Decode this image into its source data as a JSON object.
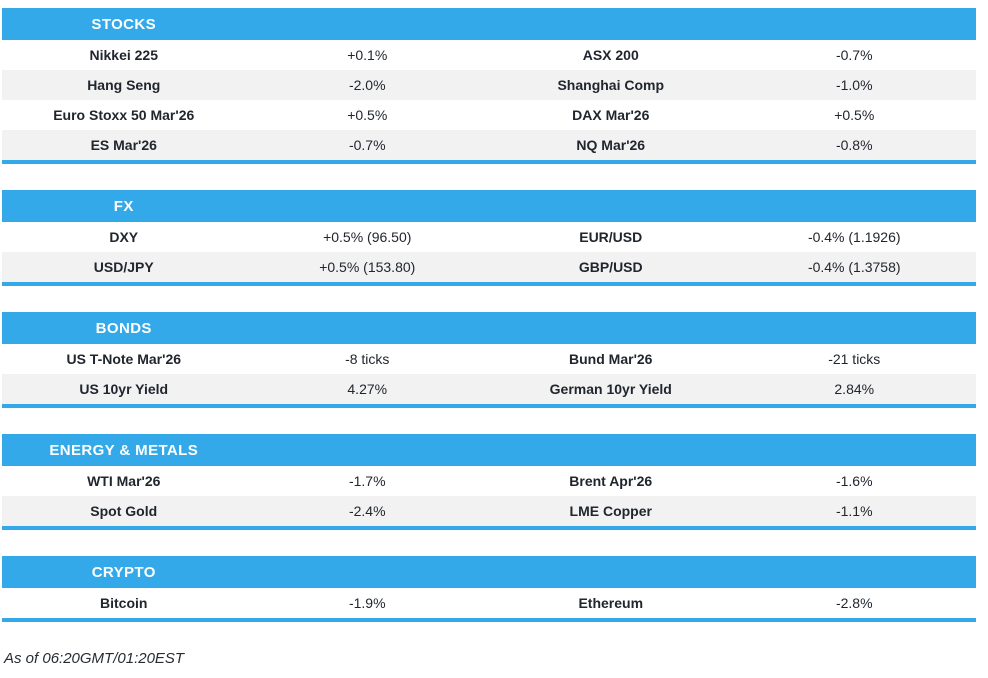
{
  "colors": {
    "accent_blue": "#33A9E9",
    "row_alt_gray": "#F2F2F2",
    "text_dark": "#21262E",
    "header_text": "#FFFFFF"
  },
  "sections": [
    {
      "title": "STOCKS",
      "rows": [
        [
          "Nikkei 225",
          "+0.1%",
          "ASX 200",
          "-0.7%"
        ],
        [
          "Hang Seng",
          "-2.0%",
          "Shanghai Comp",
          "-1.0%"
        ],
        [
          "Euro Stoxx 50 Mar'26",
          "+0.5%",
          "DAX Mar'26",
          "+0.5%"
        ],
        [
          "ES Mar'26",
          "-0.7%",
          "NQ Mar'26",
          "-0.8%"
        ]
      ]
    },
    {
      "title": "FX",
      "rows": [
        [
          "DXY",
          "+0.5% (96.50)",
          "EUR/USD",
          "-0.4% (1.1926)"
        ],
        [
          "USD/JPY",
          "+0.5% (153.80)",
          "GBP/USD",
          "-0.4% (1.3758)"
        ]
      ]
    },
    {
      "title": "BONDS",
      "rows": [
        [
          "US T-Note Mar'26",
          "-8 ticks",
          "Bund Mar'26",
          "-21 ticks"
        ],
        [
          "US 10yr Yield",
          "4.27%",
          "German 10yr Yield",
          "2.84%"
        ]
      ]
    },
    {
      "title": "ENERGY & METALS",
      "rows": [
        [
          "WTI Mar'26",
          "-1.7%",
          "Brent Apr'26",
          "-1.6%"
        ],
        [
          "Spot Gold",
          "-2.4%",
          "LME Copper",
          "-1.1%"
        ]
      ]
    },
    {
      "title": "CRYPTO",
      "rows": [
        [
          "Bitcoin",
          "-1.9%",
          "Ethereum",
          "-2.8%"
        ]
      ]
    }
  ],
  "footer": {
    "as_of": "As of 06:20GMT/01:20EST"
  }
}
